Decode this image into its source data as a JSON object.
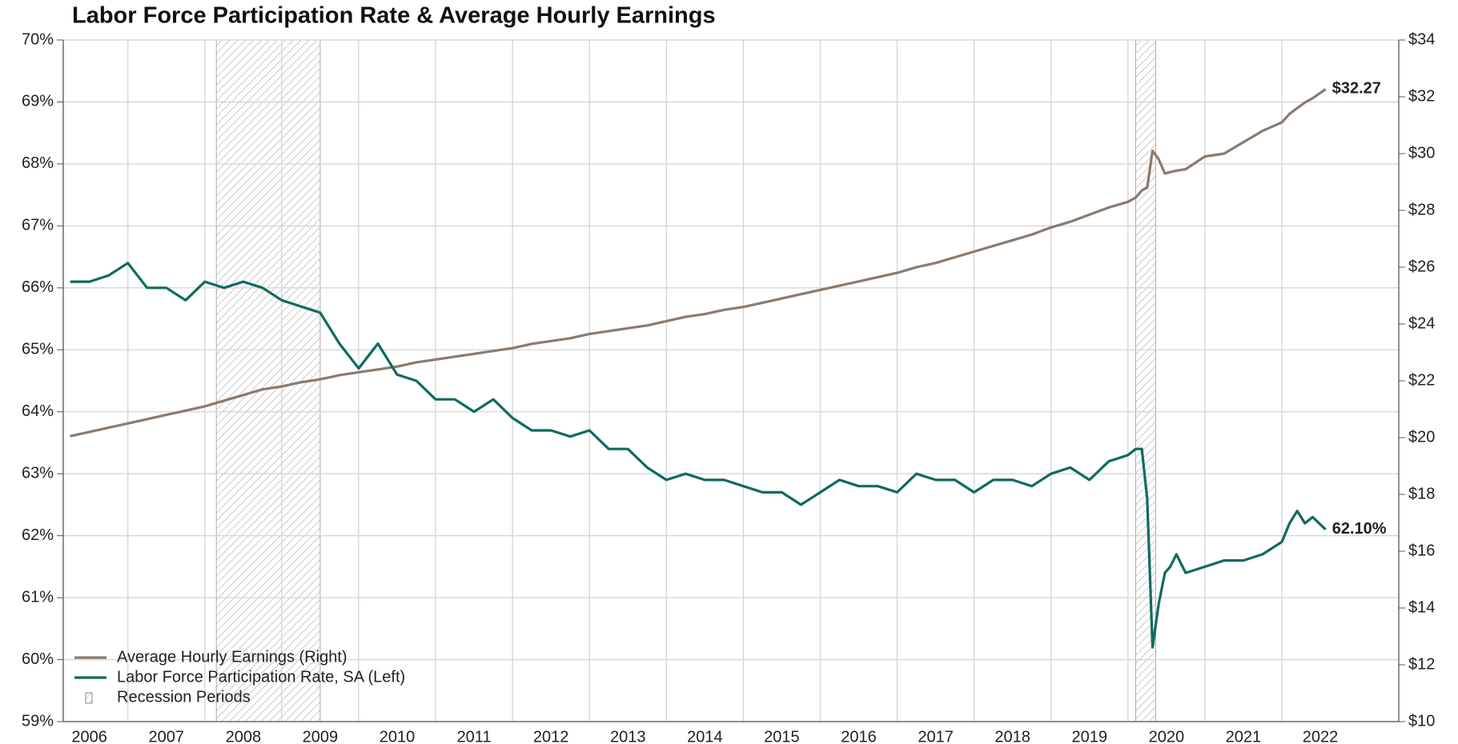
{
  "chart_data": {
    "type": "line",
    "title": "Labor Force Participation Rate & Average Hourly Earnings",
    "x": [
      2006.25,
      2006.5,
      2006.75,
      2007.0,
      2007.25,
      2007.5,
      2007.75,
      2008.0,
      2008.25,
      2008.5,
      2008.75,
      2009.0,
      2009.25,
      2009.5,
      2009.75,
      2010.0,
      2010.25,
      2010.5,
      2010.75,
      2011.0,
      2011.25,
      2011.5,
      2011.75,
      2012.0,
      2012.25,
      2012.5,
      2012.75,
      2013.0,
      2013.25,
      2013.5,
      2013.75,
      2014.0,
      2014.25,
      2014.5,
      2014.75,
      2015.0,
      2015.25,
      2015.5,
      2015.75,
      2016.0,
      2016.25,
      2016.5,
      2016.75,
      2017.0,
      2017.25,
      2017.5,
      2017.75,
      2018.0,
      2018.25,
      2018.5,
      2018.75,
      2019.0,
      2019.25,
      2019.5,
      2019.75,
      2020.0,
      2020.1,
      2020.18,
      2020.25,
      2020.32,
      2020.4,
      2020.48,
      2020.55,
      2020.63,
      2020.75,
      2021.0,
      2021.25,
      2021.5,
      2021.75,
      2022.0,
      2022.1,
      2022.2,
      2022.3,
      2022.4,
      2022.57
    ],
    "series": [
      {
        "name": "Average Hourly Earnings (Right)",
        "color": "#8b7a6f",
        "axis": "y2",
        "values": [
          20.05,
          20.2,
          20.35,
          20.5,
          20.65,
          20.8,
          20.95,
          21.1,
          21.3,
          21.5,
          21.7,
          21.8,
          21.95,
          22.05,
          22.2,
          22.3,
          22.4,
          22.5,
          22.65,
          22.75,
          22.85,
          22.95,
          23.05,
          23.15,
          23.3,
          23.4,
          23.5,
          23.65,
          23.75,
          23.85,
          23.95,
          24.1,
          24.25,
          24.35,
          24.5,
          24.6,
          24.75,
          24.9,
          25.05,
          25.2,
          25.35,
          25.5,
          25.65,
          25.8,
          26.0,
          26.15,
          26.35,
          26.55,
          26.75,
          26.95,
          27.15,
          27.4,
          27.6,
          27.85,
          28.1,
          28.3,
          28.45,
          28.7,
          28.8,
          30.1,
          29.8,
          29.3,
          29.35,
          29.4,
          29.45,
          29.9,
          30.0,
          30.4,
          30.8,
          31.1,
          31.4,
          31.6,
          31.8,
          31.95,
          32.27
        ],
        "value_labels": [
          null,
          null,
          null,
          null,
          null,
          null,
          null,
          null,
          null,
          null,
          null,
          null,
          null,
          null,
          null,
          null,
          null,
          null,
          null,
          null,
          null,
          null,
          null,
          null,
          null,
          null,
          null,
          null,
          null,
          null,
          null,
          null,
          null,
          null,
          null,
          null,
          null,
          null,
          null,
          null,
          null,
          null,
          null,
          null,
          null,
          null,
          null,
          null,
          null,
          null,
          null,
          null,
          null,
          null,
          null,
          null,
          null,
          null,
          null,
          null,
          null,
          null,
          null,
          null,
          null,
          null,
          null,
          null,
          null,
          null,
          null,
          null,
          null,
          null,
          "$32.27"
        ]
      },
      {
        "name": "Labor Force Participation Rate, SA (Left)",
        "color": "#0e6b5e",
        "axis": "y",
        "values": [
          66.1,
          66.1,
          66.2,
          66.4,
          66.0,
          66.0,
          65.8,
          66.1,
          66.0,
          66.1,
          66.0,
          65.8,
          65.7,
          65.6,
          65.1,
          64.7,
          65.1,
          64.6,
          64.5,
          64.2,
          64.2,
          64.0,
          64.2,
          63.9,
          63.7,
          63.7,
          63.6,
          63.7,
          63.4,
          63.4,
          63.1,
          62.9,
          63.0,
          62.9,
          62.9,
          62.8,
          62.7,
          62.7,
          62.5,
          62.7,
          62.9,
          62.8,
          62.8,
          62.7,
          63.0,
          62.9,
          62.9,
          62.7,
          62.9,
          62.9,
          62.8,
          63.0,
          63.1,
          62.9,
          63.2,
          63.3,
          63.4,
          63.4,
          62.6,
          60.2,
          60.9,
          61.4,
          61.5,
          61.7,
          61.4,
          61.5,
          61.6,
          61.6,
          61.7,
          61.9,
          62.2,
          62.4,
          62.2,
          62.3,
          62.1
        ],
        "value_labels": [
          null,
          null,
          null,
          null,
          null,
          null,
          null,
          null,
          null,
          null,
          null,
          null,
          null,
          null,
          null,
          null,
          null,
          null,
          null,
          null,
          null,
          null,
          null,
          null,
          null,
          null,
          null,
          null,
          null,
          null,
          null,
          null,
          null,
          null,
          null,
          null,
          null,
          null,
          null,
          null,
          null,
          null,
          null,
          null,
          null,
          null,
          null,
          null,
          null,
          null,
          null,
          null,
          null,
          null,
          null,
          null,
          null,
          null,
          null,
          null,
          null,
          null,
          null,
          null,
          null,
          null,
          null,
          null,
          null,
          null,
          null,
          null,
          null,
          null,
          "62.10%"
        ]
      }
    ],
    "recessions": {
      "name": "Recession Periods",
      "periods": [
        [
          2008.15,
          2009.5
        ],
        [
          2020.1,
          2020.36
        ]
      ]
    },
    "xlim": [
      2006.16,
      2023.52
    ],
    "xticks": [
      2006,
      2007,
      2008,
      2009,
      2010,
      2011,
      2012,
      2013,
      2014,
      2015,
      2016,
      2017,
      2018,
      2019,
      2020,
      2021,
      2022
    ],
    "ylim": [
      59,
      70
    ],
    "yticks": [
      {
        "value": 59,
        "label": "59%"
      },
      {
        "value": 60,
        "label": "60%"
      },
      {
        "value": 61,
        "label": "61%"
      },
      {
        "value": 62,
        "label": "62%"
      },
      {
        "value": 63,
        "label": "63%"
      },
      {
        "value": 64,
        "label": "64%"
      },
      {
        "value": 65,
        "label": "65%"
      },
      {
        "value": 66,
        "label": "66%"
      },
      {
        "value": 67,
        "label": "67%"
      },
      {
        "value": 68,
        "label": "68%"
      },
      {
        "value": 69,
        "label": "69%"
      },
      {
        "value": 70,
        "label": "70%"
      }
    ],
    "y2lim": [
      10,
      34
    ],
    "y2ticks": [
      {
        "value": 10,
        "label": "$10"
      },
      {
        "value": 12,
        "label": "$12"
      },
      {
        "value": 14,
        "label": "$14"
      },
      {
        "value": 16,
        "label": "$16"
      },
      {
        "value": 18,
        "label": "$18"
      },
      {
        "value": 20,
        "label": "$20"
      },
      {
        "value": 22,
        "label": "$22"
      },
      {
        "value": 24,
        "label": "$24"
      },
      {
        "value": 26,
        "label": "$26"
      },
      {
        "value": 28,
        "label": "$28"
      },
      {
        "value": 30,
        "label": "$30"
      },
      {
        "value": 32,
        "label": "$32"
      },
      {
        "value": 34,
        "label": "$34"
      }
    ],
    "grid": true,
    "legend": "lower left"
  }
}
